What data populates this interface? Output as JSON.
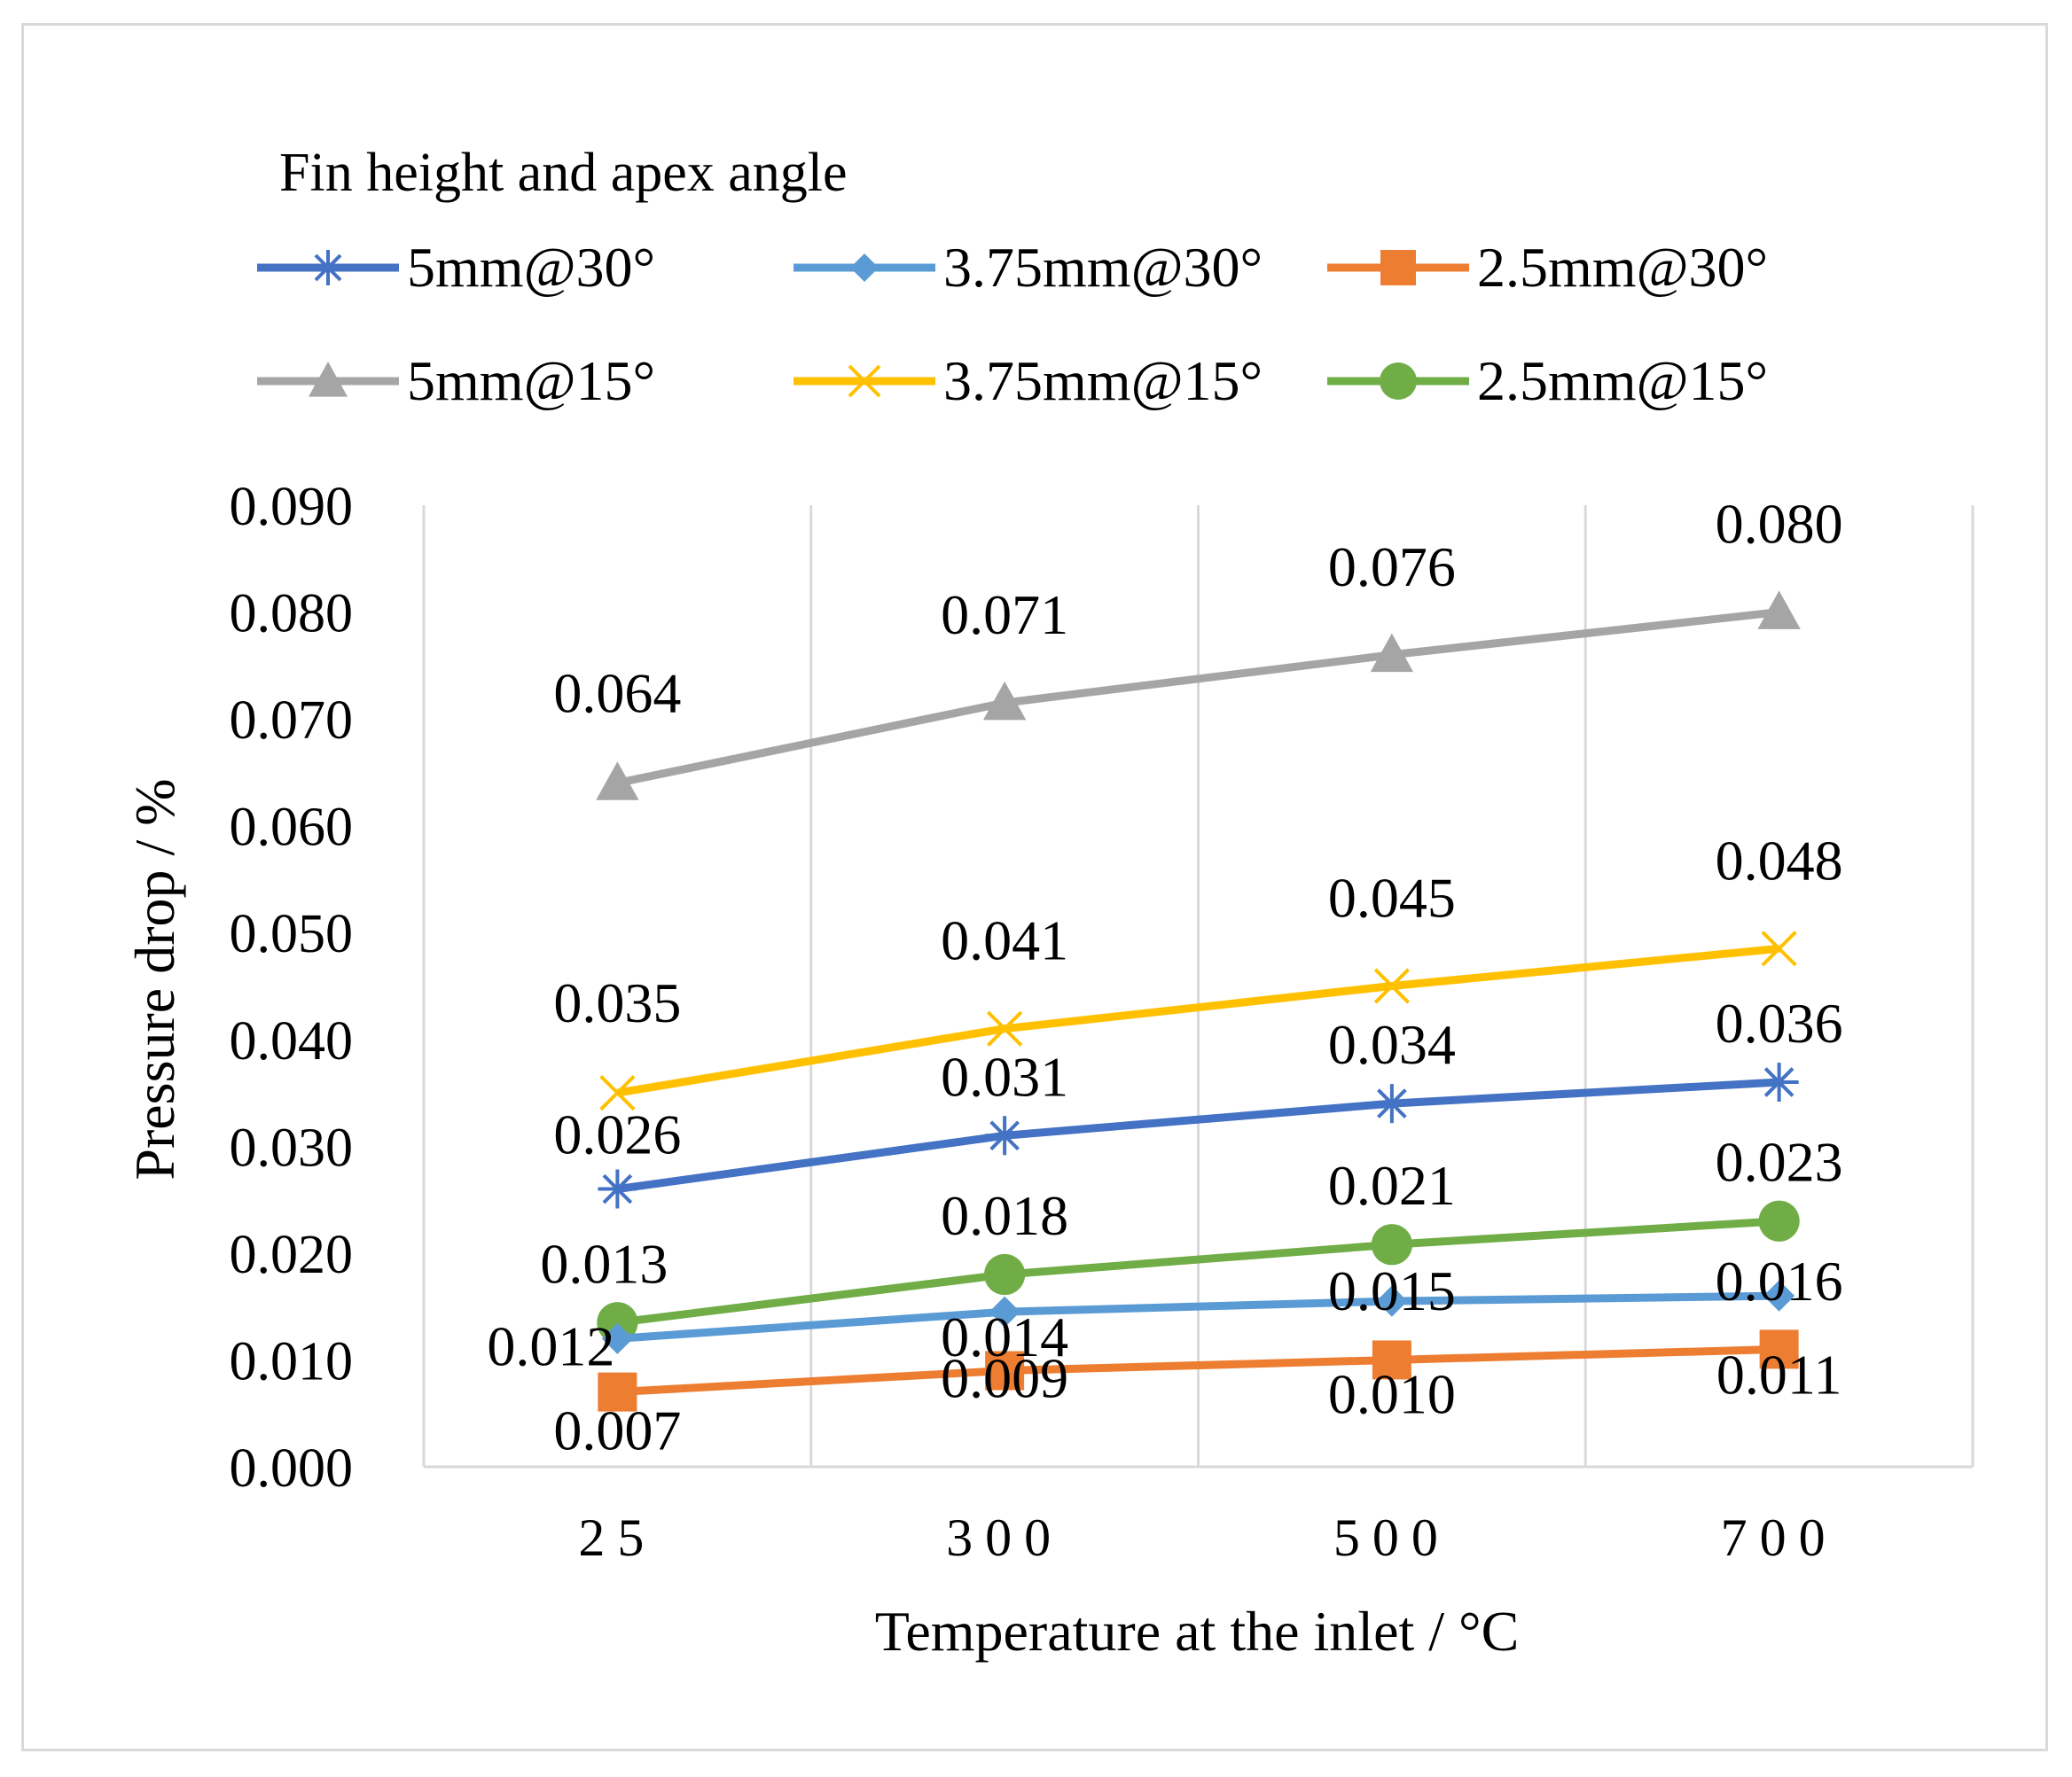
{
  "chart_data": {
    "type": "line",
    "legend_title": "Fin height and apex angle",
    "categories": [
      "25",
      "300",
      "500",
      "700"
    ],
    "xlabel": "Temperature at the inlet / °C",
    "ylabel": "Pressure drop / %",
    "ylim": [
      0,
      0.09
    ],
    "yticks": [
      "0.000",
      "0.010",
      "0.020",
      "0.030",
      "0.040",
      "0.050",
      "0.060",
      "0.070",
      "0.080",
      "0.090"
    ],
    "grid": "vertical",
    "legend_position": "top",
    "series": [
      {
        "name": "5mm@30°",
        "marker": "asterisk",
        "color": "#4472C4",
        "values": [
          0.026,
          0.031,
          0.034,
          0.036
        ],
        "labels": [
          "0.026",
          "0.031",
          "0.034",
          "0.036"
        ]
      },
      {
        "name": "3.75mm@30°",
        "marker": "diamond",
        "color": "#5B9BD5",
        "values": [
          0.012,
          0.0145,
          0.0155,
          0.016
        ],
        "labels": [
          "0.012",
          "0.014",
          "0.015",
          "0.016"
        ]
      },
      {
        "name": "2.5mm@30°",
        "marker": "square",
        "color": "#ED7D31",
        "values": [
          0.007,
          0.009,
          0.01,
          0.011
        ],
        "labels": [
          "0.007",
          "0.009",
          "0.010",
          "0.011"
        ]
      },
      {
        "name": "5mm@15°",
        "marker": "triangle",
        "color": "#A5A5A5",
        "values": [
          0.064,
          0.0715,
          0.076,
          0.08
        ],
        "labels": [
          "0.064",
          "0.071",
          "0.076",
          "0.080"
        ]
      },
      {
        "name": "3.75mm@15°",
        "marker": "x",
        "color": "#FFC000",
        "values": [
          0.035,
          0.041,
          0.045,
          0.0485
        ],
        "labels": [
          "0.035",
          "0.041",
          "0.045",
          "0.048"
        ]
      },
      {
        "name": "2.5mm@15°",
        "marker": "circle",
        "color": "#70AD47",
        "values": [
          0.0135,
          0.018,
          0.0208,
          0.023
        ],
        "labels": [
          "0.013",
          "0.018",
          "0.021",
          "0.023"
        ]
      }
    ]
  }
}
